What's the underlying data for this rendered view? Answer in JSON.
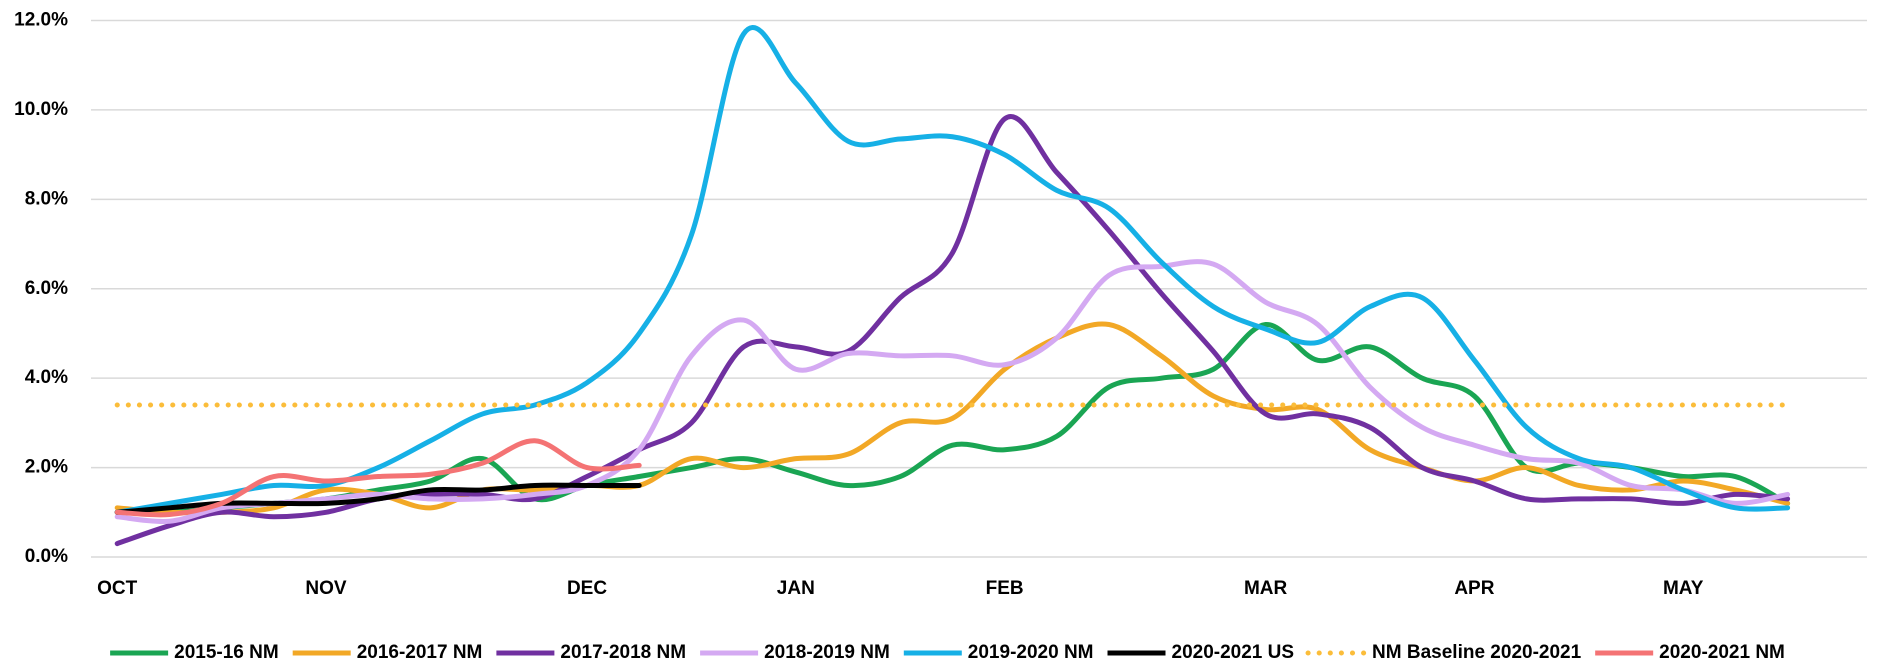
{
  "chart_data": {
    "type": "line",
    "categories": [
      "OCT",
      null,
      null,
      null,
      "NOV",
      null,
      null,
      null,
      null,
      "DEC",
      null,
      null,
      null,
      "JAN",
      null,
      null,
      null,
      "FEB",
      null,
      null,
      null,
      null,
      "MAR",
      null,
      null,
      null,
      "APR",
      null,
      null,
      null,
      "MAY",
      null,
      null
    ],
    "ylim": [
      0,
      12
    ],
    "yticks": [
      {
        "value": 0,
        "label": "0.0%"
      },
      {
        "value": 2,
        "label": "2.0%"
      },
      {
        "value": 4,
        "label": "4.0%"
      },
      {
        "value": 6,
        "label": "6.0%"
      },
      {
        "value": 8,
        "label": "8.0%"
      },
      {
        "value": 10,
        "label": "10.0%"
      },
      {
        "value": 12,
        "label": "12.0%"
      }
    ],
    "grid": true,
    "legend": "bottom",
    "series": [
      {
        "name": "2015-16 NM",
        "color": "#1aa553",
        "values": [
          1.0,
          1.0,
          1.1,
          1.2,
          1.3,
          1.5,
          1.7,
          2.2,
          1.3,
          1.6,
          1.8,
          2.0,
          2.2,
          1.9,
          1.6,
          1.8,
          2.5,
          2.4,
          2.7,
          3.8,
          4.0,
          4.2,
          5.2,
          4.4,
          4.7,
          4.0,
          3.6,
          2.0,
          2.1,
          2.0,
          1.8,
          1.8,
          1.2
        ]
      },
      {
        "name": "2016-2017 NM",
        "color": "#f2a826",
        "values": [
          1.1,
          1.0,
          1.0,
          1.1,
          1.5,
          1.4,
          1.1,
          1.5,
          1.5,
          1.6,
          1.6,
          2.2,
          2.0,
          2.2,
          2.3,
          3.0,
          3.1,
          4.2,
          4.9,
          5.2,
          4.5,
          3.6,
          3.3,
          3.3,
          2.4,
          2.0,
          1.7,
          2.0,
          1.6,
          1.5,
          1.7,
          1.5,
          1.2
        ]
      },
      {
        "name": "2017-2018 NM",
        "color": "#7030a0",
        "values": [
          0.3,
          0.7,
          1.0,
          0.9,
          1.0,
          1.3,
          1.4,
          1.4,
          1.3,
          1.8,
          2.4,
          3.0,
          4.7,
          4.7,
          4.6,
          5.8,
          6.8,
          9.8,
          8.6,
          7.3,
          5.9,
          4.6,
          3.2,
          3.2,
          2.9,
          2.0,
          1.7,
          1.3,
          1.3,
          1.3,
          1.2,
          1.4,
          1.3
        ]
      },
      {
        "name": "2018-2019 NM",
        "color": "#d4a9f2",
        "values": [
          0.9,
          0.8,
          1.1,
          1.2,
          1.3,
          1.4,
          1.3,
          1.3,
          1.4,
          1.6,
          2.4,
          4.5,
          5.3,
          4.2,
          4.55,
          4.5,
          4.5,
          4.3,
          4.9,
          6.3,
          6.5,
          6.55,
          5.7,
          5.2,
          3.8,
          2.9,
          2.5,
          2.2,
          2.1,
          1.6,
          1.5,
          1.2,
          1.4
        ]
      },
      {
        "name": "2019-2020 NM",
        "color": "#16b0e6",
        "values": [
          1.0,
          1.2,
          1.4,
          1.6,
          1.6,
          2.0,
          2.6,
          3.2,
          3.4,
          3.9,
          5.0,
          7.2,
          11.7,
          10.6,
          9.3,
          9.35,
          9.4,
          9.0,
          8.2,
          7.8,
          6.6,
          5.6,
          5.1,
          4.8,
          5.6,
          5.8,
          4.4,
          2.9,
          2.2,
          2.0,
          1.5,
          1.1,
          1.1
        ]
      },
      {
        "name": "2020-2021 US",
        "color": "#000000",
        "values": [
          1.0,
          1.1,
          1.2,
          1.2,
          1.2,
          1.3,
          1.5,
          1.5,
          1.6,
          1.6,
          1.6,
          null,
          null,
          null,
          null,
          null,
          null,
          null,
          null,
          null,
          null,
          null,
          null,
          null,
          null,
          null,
          null,
          null,
          null,
          null,
          null,
          null,
          null
        ]
      },
      {
        "name": "NM Baseline 2020-2021",
        "color": "#fbbd3a",
        "dash": "dotted",
        "values": [
          3.4,
          3.4,
          3.4,
          3.4,
          3.4,
          3.4,
          3.4,
          3.4,
          3.4,
          3.4,
          3.4,
          3.4,
          3.4,
          3.4,
          3.4,
          3.4,
          3.4,
          3.4,
          3.4,
          3.4,
          3.4,
          3.4,
          3.4,
          3.4,
          3.4,
          3.4,
          3.4,
          3.4,
          3.4,
          3.4,
          3.4,
          3.4,
          3.4
        ]
      },
      {
        "name": "2020-2021 NM",
        "color": "#f47374",
        "values": [
          1.0,
          0.95,
          1.2,
          1.8,
          1.7,
          1.8,
          1.85,
          2.1,
          2.6,
          2.0,
          2.05,
          null,
          null,
          null,
          null,
          null,
          null,
          null,
          null,
          null,
          null,
          null,
          null,
          null,
          null,
          null,
          null,
          null,
          null,
          null,
          null,
          null,
          null
        ]
      }
    ]
  }
}
